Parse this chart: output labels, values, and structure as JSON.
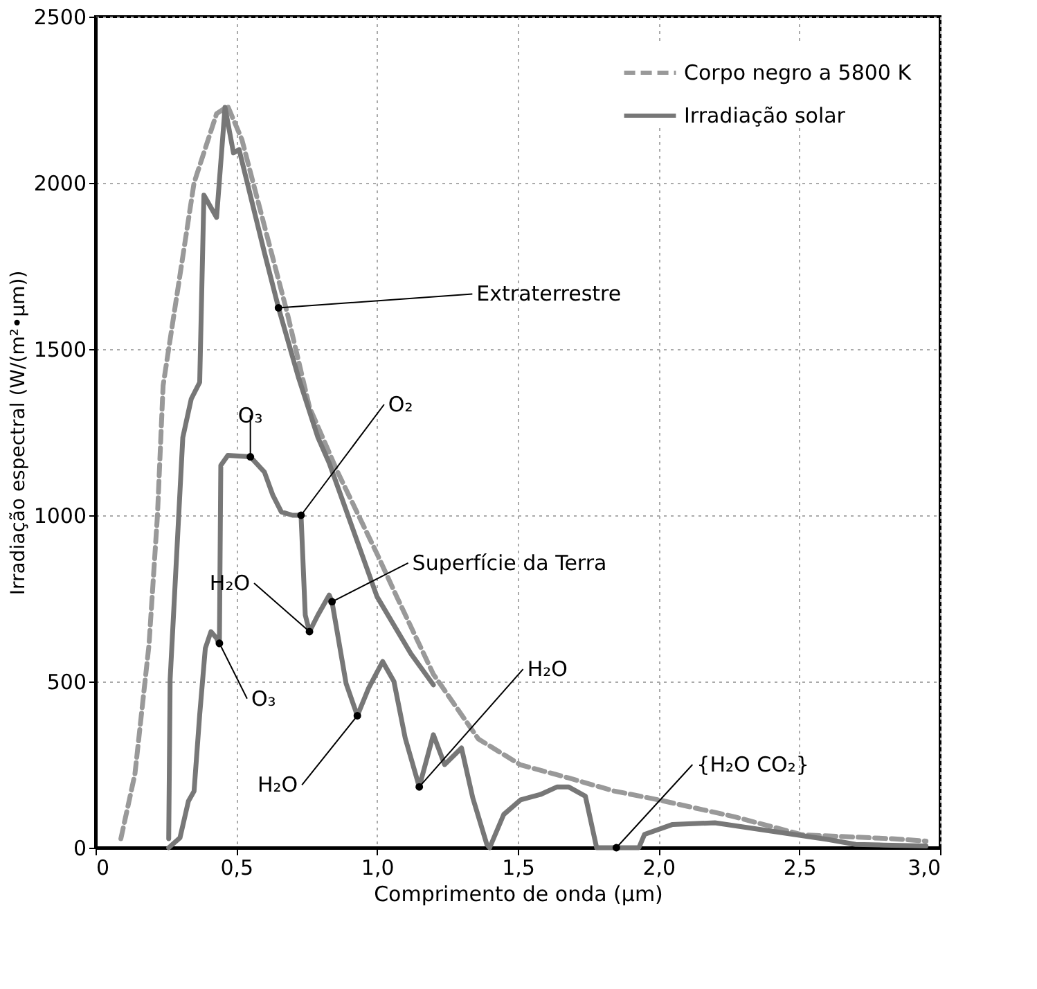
{
  "chart_data": {
    "type": "line",
    "xlabel": "Comprimento de onda (µm)",
    "ylabel": "Irradiação espectral (W/(m²•µm))",
    "xlim": [
      0,
      3.0
    ],
    "xticks": [
      0,
      {
        "value": 0.5,
        "label": "0,5"
      },
      {
        "value": 1.0,
        "label": "1,0"
      },
      {
        "value": 1.5,
        "label": "1,5"
      },
      {
        "value": 2.0,
        "label": "2,0"
      },
      {
        "value": 2.5,
        "label": "2,5"
      },
      {
        "value": 3.0,
        "label": "3,0"
      }
    ],
    "ylim": [
      0,
      2500
    ],
    "yticks": [
      0,
      500,
      1000,
      1500,
      2000,
      2500
    ],
    "grid": true,
    "legend": "top right",
    "marker": "none",
    "series": [
      {
        "name": "Corpo negro a 5800 K",
        "color": "#999999",
        "line_style": "dashed",
        "x": [
          0.09,
          0.14,
          0.19,
          0.22,
          0.24,
          0.28,
          0.35,
          0.43,
          0.47,
          0.52,
          0.6,
          0.68,
          0.76,
          0.86,
          1.0,
          1.07,
          1.2,
          1.36,
          1.51,
          1.68,
          1.84,
          2.0,
          2.27,
          2.51,
          2.83,
          2.95
        ],
        "values": [
          27,
          222,
          611,
          1000,
          1390,
          1612,
          2000,
          2208,
          2230,
          2130,
          1870,
          1612,
          1325,
          1130,
          884,
          755,
          522,
          327,
          249,
          210,
          171,
          144,
          93,
          39,
          27,
          20
        ]
      },
      {
        "name": "Irradiação solar",
        "color": "#777777",
        "line_style": "solid",
        "x": [
          0.26,
          0.265,
          0.31,
          0.34,
          0.37,
          0.385,
          0.43,
          0.46,
          0.49,
          0.51,
          0.6,
          0.65,
          0.72,
          0.79,
          0.83,
          0.875,
          1.0,
          1.12,
          1.2
        ],
        "values": [
          27,
          506,
          1234,
          1350,
          1400,
          1963,
          1896,
          2227,
          2090,
          2100,
          1790,
          1624,
          1417,
          1234,
          1157,
          1051,
          755,
          584,
          490
        ]
      },
      {
        "color": "#777777",
        "line_style": "solid",
        "x": [
          0.26,
          0.3,
          0.33,
          0.35,
          0.37,
          0.39,
          0.41,
          0.43,
          0.44,
          0.445,
          0.47,
          0.55,
          0.6,
          0.63,
          0.66,
          0.7,
          0.73,
          0.745,
          0.76,
          0.79,
          0.83,
          0.84,
          0.89,
          0.93,
          0.97,
          1.02,
          1.06,
          1.1,
          1.15,
          1.2,
          1.24,
          1.3,
          1.34,
          1.39,
          1.4,
          1.45,
          1.51,
          1.58,
          1.64,
          1.68,
          1.74,
          1.78,
          1.93,
          1.95,
          2.05,
          2.2,
          2.4,
          2.6,
          2.7,
          2.8,
          2.95
        ],
        "values": [
          0,
          30,
          140,
          170,
          400,
          600,
          650,
          630,
          610,
          1150,
          1180,
          1176,
          1130,
          1060,
          1010,
          1000,
          1000,
          700,
          650,
          700,
          760,
          740,
          494,
          397,
          480,
          560,
          500,
          330,
          183,
          340,
          250,
          300,
          150,
          10,
          0,
          100,
          144,
          160,
          183,
          183,
          155,
          0,
          0,
          40,
          70,
          75,
          50,
          25,
          10,
          8,
          5
        ]
      }
    ],
    "annotations": [
      {
        "text": "Extraterrestre",
        "x": 0.65,
        "y": 1624
      },
      {
        "text": "O₃",
        "x": 0.55,
        "y": 1176
      },
      {
        "text": "O₂",
        "x": 0.73,
        "y": 1000
      },
      {
        "text": "H₂O",
        "x": 0.76,
        "y": 650
      },
      {
        "text": "Superfície da Terra",
        "x": 0.84,
        "y": 740
      },
      {
        "text": "O₃",
        "x": 0.44,
        "y": 615
      },
      {
        "text": "H₂O",
        "x": 0.93,
        "y": 397
      },
      {
        "text": "H₂O",
        "x": 1.15,
        "y": 183
      },
      {
        "text": "{H₂O CO₂}",
        "x": 1.85,
        "y": 0
      }
    ]
  }
}
